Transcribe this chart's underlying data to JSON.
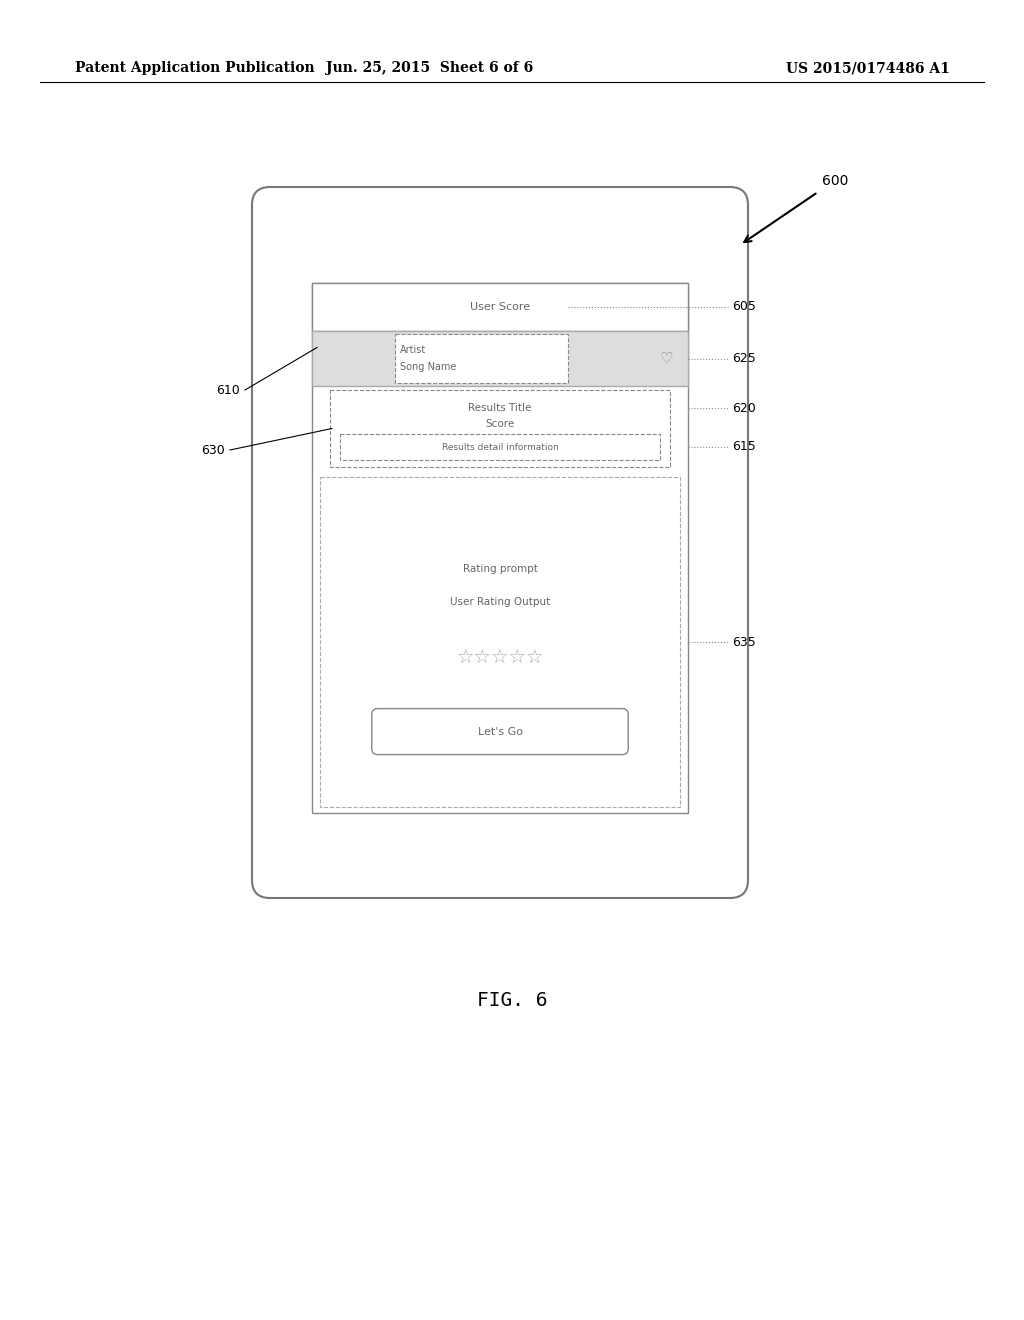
{
  "bg_color": "#ffffff",
  "header_left": "Patent Application Publication",
  "header_center": "Jun. 25, 2015  Sheet 6 of 6",
  "header_right": "US 2015/0174486 A1",
  "fig_label": "FIG. 6",
  "label_600": "600",
  "label_605": "605",
  "label_610": "610",
  "label_615": "615",
  "label_620": "620",
  "label_625": "625",
  "label_630": "630",
  "label_635": "635",
  "user_score_text": "User Score",
  "song_name_text": "Song Name",
  "artist_text": "Artist",
  "results_title_text": "Results Title",
  "score_text": "Score",
  "results_detail_text": "Results detail information",
  "rating_prompt_text": "Rating prompt",
  "user_rating_text": "User Rating Output",
  "lets_go_text": "Let's Go",
  "stars_text": "☆☆☆☆☆"
}
